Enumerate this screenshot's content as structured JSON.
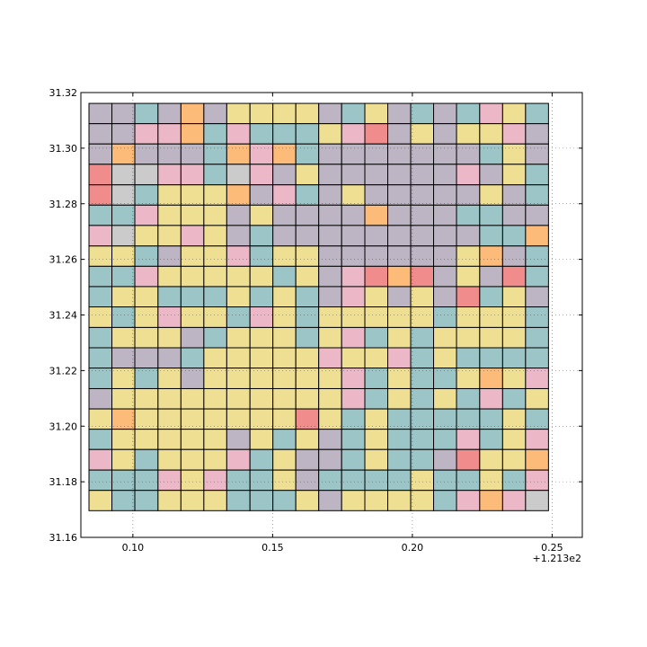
{
  "chart_data": {
    "type": "heatmap",
    "title": "",
    "xlabel": "",
    "ylabel": "",
    "x_offset_label": "+1.213e2",
    "xlim": [
      0.0814,
      0.2608
    ],
    "ylim": [
      31.16,
      31.32
    ],
    "x_ticks": [
      0.1,
      0.15,
      0.2,
      0.25
    ],
    "x_tick_labels": [
      "0.10",
      "0.15",
      "0.20",
      "0.25"
    ],
    "y_ticks": [
      31.16,
      31.18,
      31.2,
      31.22,
      31.24,
      31.26,
      31.28,
      31.3,
      31.32
    ],
    "y_tick_labels": [
      "31.16",
      "31.18",
      "31.20",
      "31.22",
      "31.24",
      "31.26",
      "31.28",
      "31.30",
      "31.32"
    ],
    "grid": true,
    "grid_x_lon": [
      0.0843,
      0.0925,
      0.1007,
      0.109,
      0.1172,
      0.1254,
      0.1336,
      0.1419,
      0.1501,
      0.1583,
      0.1665,
      0.1747,
      0.183,
      0.1912,
      0.1994,
      0.2076,
      0.2158,
      0.2241,
      0.2323,
      0.2405,
      0.2487
    ],
    "grid_y_lat": [
      31.3161,
      31.3088,
      31.3015,
      31.2942,
      31.2868,
      31.2795,
      31.2722,
      31.2648,
      31.2575,
      31.2502,
      31.2429,
      31.2355,
      31.2282,
      31.2209,
      31.2135,
      31.2062,
      31.1989,
      31.1916,
      31.1842,
      31.1769,
      31.1696
    ],
    "palette": {
      "M": "#bdb5c3",
      "T": "#9cc5c7",
      "P": "#ecb8c8",
      "O": "#fdbb79",
      "Y": "#efdf93",
      "R": "#f08c8c",
      "G": "#cbcbcb"
    },
    "rows": [
      "MMTMOMYYYYMTYMTMTPYT",
      "MMPPOTPTTTYPRMYMYYPM",
      "MOMMMTOPOTMMMMMMMTYM",
      "RGGPPTGPMYMMMMMMPMYT",
      "RGTYYYOMPTMYMMMMMYMT",
      "TTPYYYMYMMMMOMMMTTMM",
      "PGYYPYMTMMMMMMMMMTTO",
      "YYTMYYPTYYMMMMMMYOMT",
      "TTPYYYYYTYMPRORMYMRT",
      "TYYTTTYTYTMPYMYMRTYM",
      "YTYPYYTPYTYYYYYTYYYT",
      "TYYYMTYYYTYPTYTYYYYT",
      "TMMMTYYYYYPYYPTYTTTT",
      "TYTYMYYYYYYPTYTTYOYP",
      "MYYYYYYYYYYPTYTYTPTY",
      "YOYYYYYYYRYTYTTTTTYT",
      "TYYYYYMYTYMTYTTTPTYP",
      "PYTYYYPTYMMTYTTMRYYO",
      "TTTPYPTTYMTTTTYTTYTP",
      "YTTYYYTTTYMYYYYTPOPG"
    ]
  }
}
